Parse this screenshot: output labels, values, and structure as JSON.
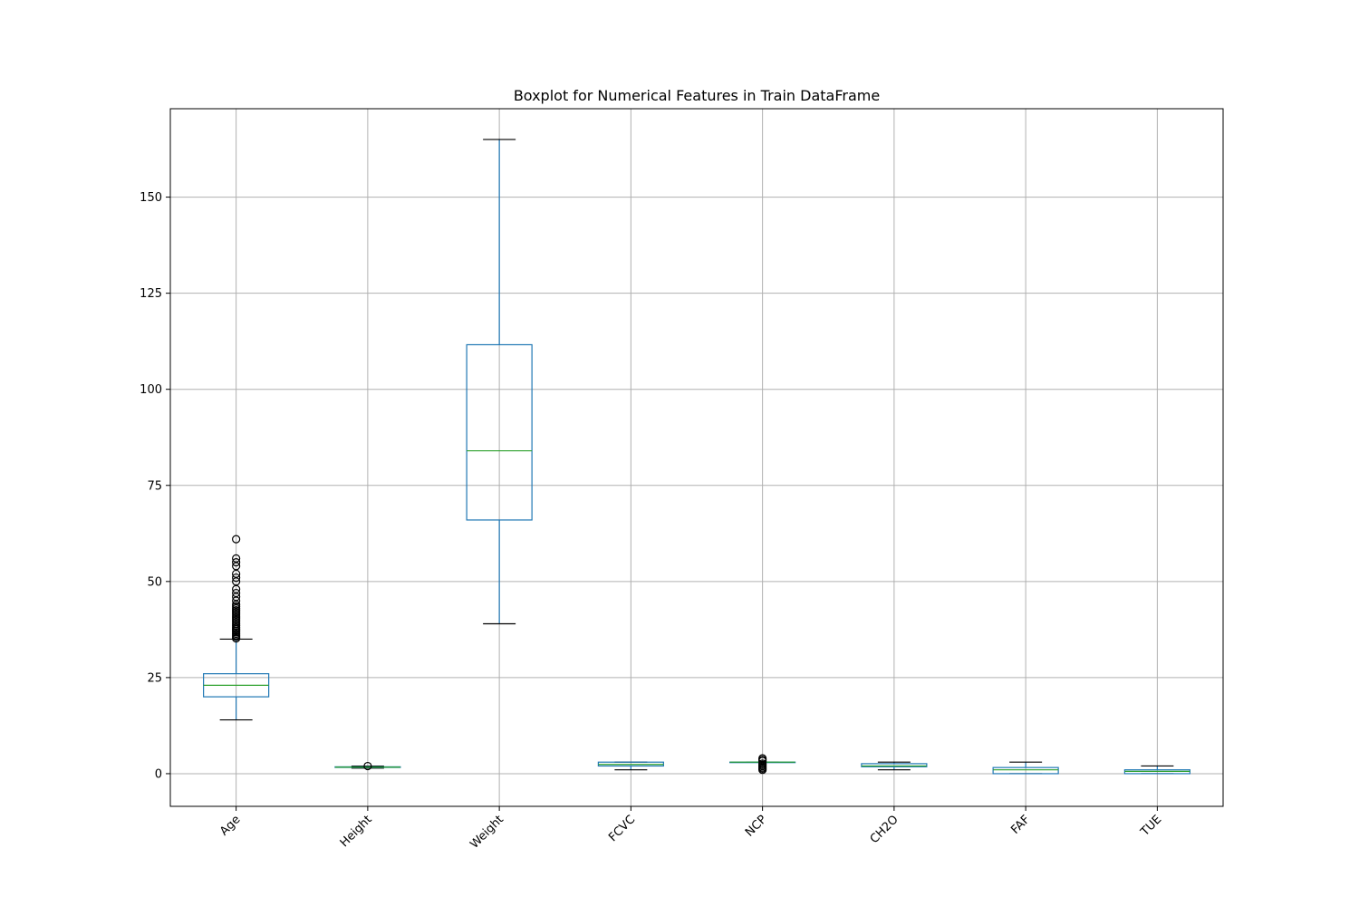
{
  "chart_data": {
    "type": "boxplot",
    "title": "Boxplot for Numerical Features in Train DataFrame",
    "xlabel": "",
    "ylabel": "",
    "ylim": [
      -8.5,
      173
    ],
    "yticks": [
      0,
      25,
      50,
      75,
      100,
      125,
      150
    ],
    "grid": true,
    "categories": [
      "Age",
      "Height",
      "Weight",
      "FCVC",
      "NCP",
      "CH2O",
      "FAF",
      "TUE"
    ],
    "boxes": [
      {
        "name": "Age",
        "whislo": 14,
        "q1": 20,
        "med": 23,
        "q3": 26,
        "whishi": 35,
        "fliers": [
          35.2,
          35.6,
          36,
          36.4,
          36.8,
          37.2,
          37.6,
          38,
          38.5,
          39,
          39.5,
          40,
          40.5,
          41,
          41.5,
          42,
          42.5,
          43,
          43.5,
          44,
          45,
          46,
          47,
          48,
          50,
          51,
          52,
          54,
          55,
          56,
          61
        ]
      },
      {
        "name": "Height",
        "whislo": 1.45,
        "q1": 1.63,
        "med": 1.7,
        "q3": 1.78,
        "whishi": 1.98,
        "fliers": [
          1.98
        ]
      },
      {
        "name": "Weight",
        "whislo": 39,
        "q1": 66,
        "med": 84,
        "q3": 111.6,
        "whishi": 165,
        "fliers": []
      },
      {
        "name": "FCVC",
        "whislo": 1,
        "q1": 2,
        "med": 2.4,
        "q3": 3,
        "whishi": 3,
        "fliers": []
      },
      {
        "name": "NCP",
        "whislo": 3,
        "q1": 3,
        "med": 3,
        "q3": 3,
        "whishi": 3,
        "fliers": [
          1,
          1.3,
          1.6,
          2,
          2.3,
          2.6,
          3.3,
          3.6,
          4
        ]
      },
      {
        "name": "CH2O",
        "whislo": 1,
        "q1": 1.8,
        "med": 2,
        "q3": 2.6,
        "whishi": 3,
        "fliers": []
      },
      {
        "name": "FAF",
        "whislo": 0,
        "q1": 0,
        "med": 1,
        "q3": 1.6,
        "whishi": 3,
        "fliers": []
      },
      {
        "name": "TUE",
        "whislo": 0,
        "q1": 0,
        "med": 0.6,
        "q3": 1,
        "whishi": 2,
        "fliers": []
      }
    ]
  }
}
